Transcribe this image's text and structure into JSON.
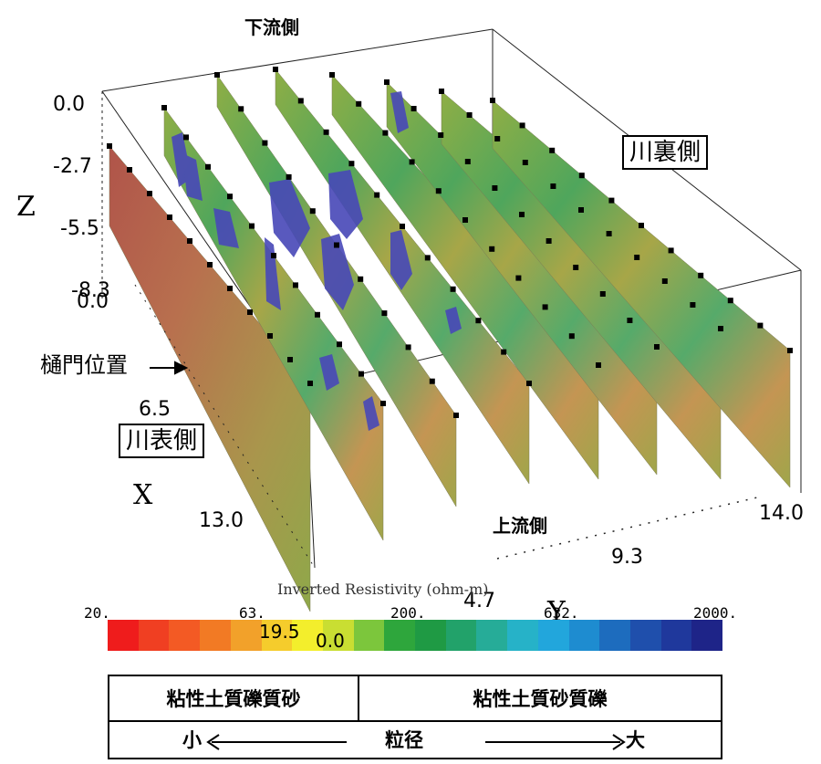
{
  "labels": {
    "downstream": "下流側",
    "upstream": "上流側",
    "riverside_back": "川裏側",
    "riverside_front": "川表側",
    "sluice_position": "樋門位置",
    "axis_z": "Z",
    "axis_x": "X",
    "axis_y": "Y",
    "z_ticks": [
      "0.0",
      "-2.7",
      "-5.5",
      "-8.3"
    ],
    "x_ticks": [
      "0.0",
      "6.5",
      "13.0"
    ],
    "y_ticks": [
      "4.7",
      "9.3",
      "14.0"
    ],
    "overlap_values": [
      "19.5",
      "0.0"
    ]
  },
  "colorbar": {
    "title": "Inverted Resistivity (ohm-m)",
    "ticks": [
      "20.",
      "63.",
      "200.",
      "632.",
      "2000."
    ],
    "colors": [
      "#ef1c1c",
      "#f03f22",
      "#f35a24",
      "#f27a24",
      "#f2a12a",
      "#f5cc2c",
      "#f3ee2c",
      "#c9de32",
      "#7cc63c",
      "#2ea63c",
      "#1f9a44",
      "#22a26a",
      "#26ac98",
      "#26b2c8",
      "#22a6dc",
      "#1e8cd0",
      "#1d6cbe",
      "#1f4fac",
      "#1f389c",
      "#1e2488"
    ]
  },
  "legend": {
    "left_soil": "粘性土質礫質砂",
    "right_soil": "粘性土質砂質礫",
    "small": "小",
    "grain_size": "粒径",
    "large": "大"
  }
}
